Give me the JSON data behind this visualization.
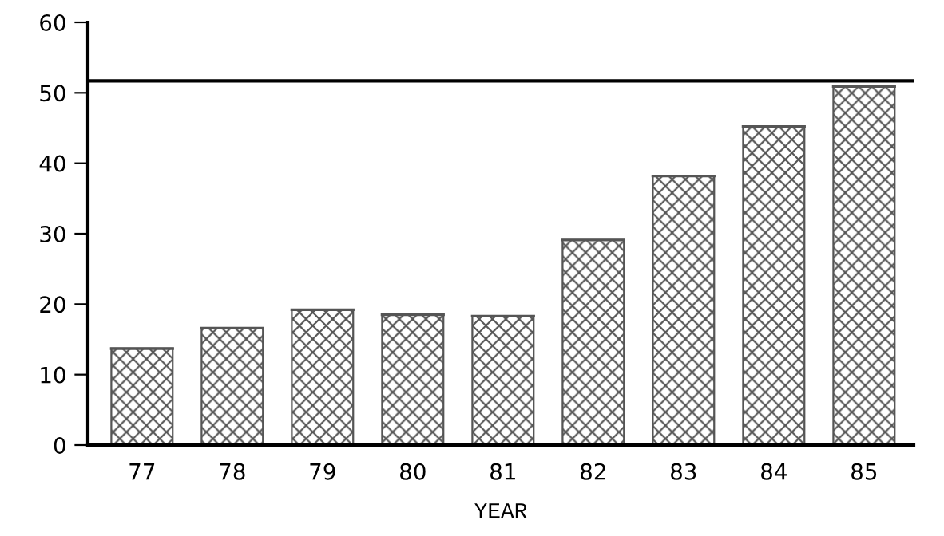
{
  "chart_data": {
    "type": "bar",
    "xlabel": "YEAR",
    "categories": [
      "77",
      "78",
      "79",
      "80",
      "81",
      "82",
      "83",
      "84",
      "85"
    ],
    "values": [
      13.7,
      16.6,
      19.2,
      18.5,
      18.3,
      29.1,
      38.2,
      45.2,
      50.9
    ],
    "color": "#555555",
    "ylim": [
      0,
      60
    ],
    "yticks": [
      0,
      10,
      20,
      30,
      40,
      50,
      60
    ],
    "ref_lines": [
      {
        "axis": "y",
        "value": 51.7,
        "color": "#000000",
        "line_style": "solid"
      }
    ],
    "grid": false,
    "legend": false
  }
}
